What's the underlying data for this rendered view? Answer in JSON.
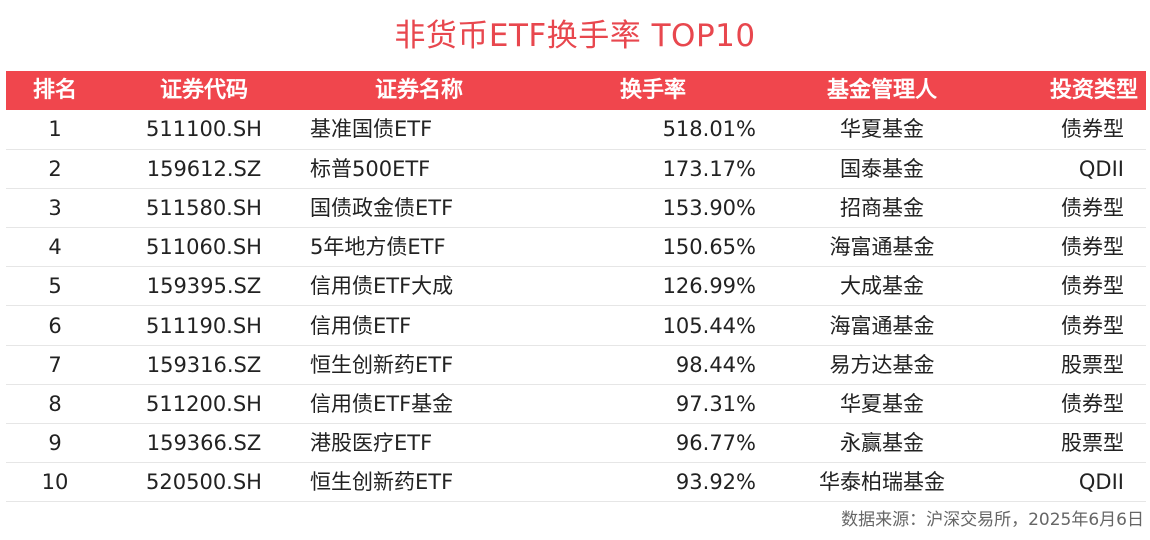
{
  "title": "非货币ETF换手率 TOP10",
  "table": {
    "headers": [
      "排名",
      "证券代码",
      "证券名称",
      "换手率",
      "基金管理人",
      "投资类型"
    ],
    "rows": [
      [
        "1",
        "511100.SH",
        "基准国债ETF",
        "518.01%",
        "华夏基金",
        "债券型"
      ],
      [
        "2",
        "159612.SZ",
        "标普500ETF",
        "173.17%",
        "国泰基金",
        "QDII"
      ],
      [
        "3",
        "511580.SH",
        "国债政金债ETF",
        "153.90%",
        "招商基金",
        "债券型"
      ],
      [
        "4",
        "511060.SH",
        "5年地方债ETF",
        "150.65%",
        "海富通基金",
        "债券型"
      ],
      [
        "5",
        "159395.SZ",
        "信用债ETF大成",
        "126.99%",
        "大成基金",
        "债券型"
      ],
      [
        "6",
        "511190.SH",
        "信用债ETF",
        "105.44%",
        "海富通基金",
        "债券型"
      ],
      [
        "7",
        "159316.SZ",
        "恒生创新药ETF",
        "98.44%",
        "易方达基金",
        "股票型"
      ],
      [
        "8",
        "511200.SH",
        "信用债ETF基金",
        "97.31%",
        "华夏基金",
        "债券型"
      ],
      [
        "9",
        "159366.SZ",
        "港股医疗ETF",
        "96.77%",
        "永赢基金",
        "股票型"
      ],
      [
        "10",
        "520500.SH",
        "恒生创新药ETF",
        "93.92%",
        "华泰柏瑞基金",
        "QDII"
      ]
    ]
  },
  "source": "数据来源：沪深交易所，2025年6月6日",
  "colors": {
    "accent": "#f0464d",
    "title": "#e8474e",
    "row_border": "#e6e6e6",
    "text": "#222222",
    "source_text": "#666666"
  }
}
